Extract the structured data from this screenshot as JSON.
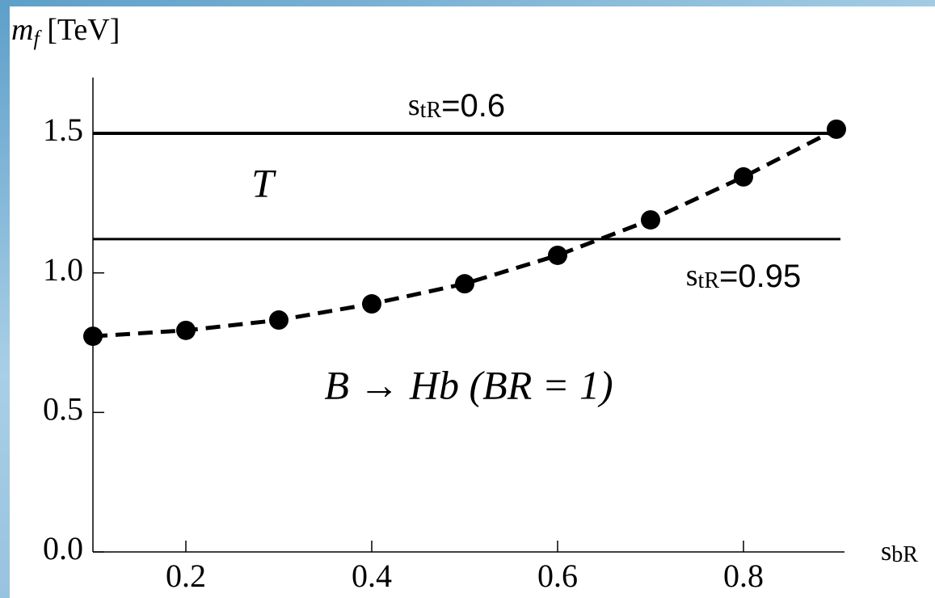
{
  "chart_data": {
    "type": "line",
    "y_label": {
      "symbol": "m",
      "subscript": "f",
      "text": " [TeV]"
    },
    "x_label": {
      "symbol": "s",
      "subscript": "bR"
    },
    "x": [
      0.1,
      0.2,
      0.3,
      0.4,
      0.5,
      0.6,
      0.7,
      0.8,
      0.9
    ],
    "series": [
      {
        "color": "#000000",
        "values": [
          0.773,
          0.794,
          0.831,
          0.889,
          0.961,
          1.063,
          1.19,
          1.344,
          1.515
        ]
      }
    ],
    "reference_lines": [
      {
        "value": 1.5,
        "label": {
          "symbol": "s",
          "subscript": "tR",
          "text": "=0.6"
        }
      },
      {
        "value": 1.121,
        "label": {
          "symbol": "s",
          "subscript": "tR",
          "text": "=0.95"
        }
      }
    ],
    "annotations": [
      "T",
      "B → Hb (BR = 1)"
    ],
    "xlim": [
      0.1,
      0.9
    ],
    "ylim": [
      0,
      1.7
    ],
    "xticks": [
      0.2,
      0.4,
      0.6,
      0.8
    ],
    "yticks": [
      {
        "value": 0,
        "label": "0.0"
      },
      {
        "value": 0.5,
        "label": "0.5"
      },
      {
        "value": 1,
        "label": "1.0"
      },
      {
        "value": 1.5,
        "label": "1.5"
      }
    ]
  }
}
